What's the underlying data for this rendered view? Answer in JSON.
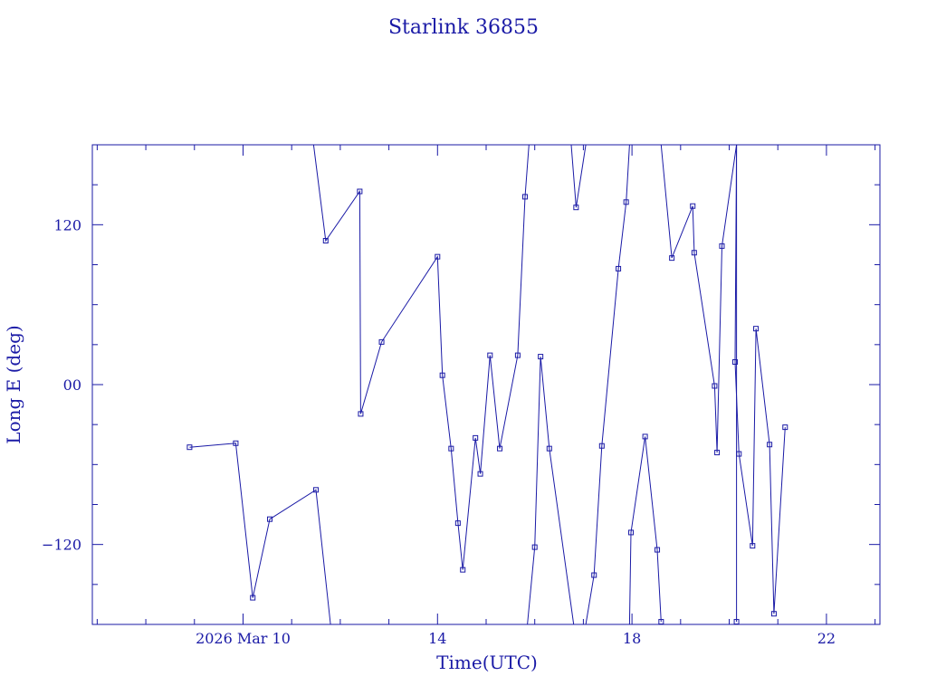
{
  "chart_data": {
    "type": "line",
    "title": "Starlink 36855",
    "xlabel": "Time(UTC)",
    "ylabel": "Long E (deg)",
    "x_unit": "hour",
    "x_ticks": [
      {
        "x": 10,
        "label": "2026 Mar 10"
      },
      {
        "x": 14,
        "label": "14"
      },
      {
        "x": 18,
        "label": "18"
      },
      {
        "x": 22,
        "label": "22"
      }
    ],
    "y_ticks": [
      {
        "y": 120,
        "label": "120"
      },
      {
        "y": 0,
        "label": "00"
      },
      {
        "y": -120,
        "label": "−120"
      }
    ],
    "xlim": [
      6.9,
      23.1
    ],
    "ylim": [
      -180,
      180
    ],
    "color": "#1a1aa6",
    "segments": [
      [
        [
          8.9,
          -47
        ],
        [
          9.85,
          -44
        ],
        [
          10.2,
          -160
        ],
        [
          10.55,
          -101
        ],
        [
          11.5,
          -79
        ],
        [
          11.8,
          -180
        ]
      ],
      [
        [
          11.45,
          180
        ],
        [
          11.7,
          108
        ],
        [
          12.4,
          145
        ],
        [
          12.42,
          -22
        ],
        [
          12.85,
          32
        ],
        [
          14.0,
          96
        ],
        [
          14.1,
          7
        ],
        [
          14.28,
          -48
        ],
        [
          14.42,
          -104
        ],
        [
          14.52,
          -139
        ],
        [
          14.78,
          -40
        ],
        [
          14.88,
          -67
        ],
        [
          15.08,
          22
        ],
        [
          15.28,
          -48
        ],
        [
          15.65,
          22
        ],
        [
          15.8,
          141
        ],
        [
          15.88,
          180
        ]
      ],
      [
        [
          15.85,
          -180
        ],
        [
          16.0,
          -122
        ],
        [
          16.12,
          21
        ],
        [
          16.3,
          -48
        ],
        [
          16.8,
          -180
        ]
      ],
      [
        [
          16.75,
          180
        ],
        [
          16.85,
          133
        ],
        [
          17.05,
          180
        ]
      ],
      [
        [
          17.05,
          -180
        ],
        [
          17.22,
          -143
        ],
        [
          17.38,
          -46
        ],
        [
          17.72,
          87
        ],
        [
          17.88,
          137
        ],
        [
          17.95,
          180
        ]
      ],
      [
        [
          17.95,
          -180
        ],
        [
          17.98,
          -111
        ],
        [
          18.27,
          -39
        ],
        [
          18.52,
          -124
        ],
        [
          18.6,
          -178
        ]
      ],
      [
        [
          18.6,
          180
        ],
        [
          18.82,
          95
        ],
        [
          19.25,
          134
        ],
        [
          19.28,
          99
        ],
        [
          19.7,
          -1
        ],
        [
          19.75,
          -51
        ],
        [
          19.85,
          104
        ],
        [
          20.15,
          180
        ],
        [
          20.15,
          -178
        ]
      ],
      [
        [
          20.15,
          180
        ],
        [
          20.12,
          17
        ],
        [
          20.2,
          -52
        ],
        [
          20.48,
          -121
        ],
        [
          20.55,
          42
        ],
        [
          20.83,
          -45
        ],
        [
          20.92,
          -172
        ],
        [
          21.15,
          -32
        ]
      ]
    ]
  }
}
